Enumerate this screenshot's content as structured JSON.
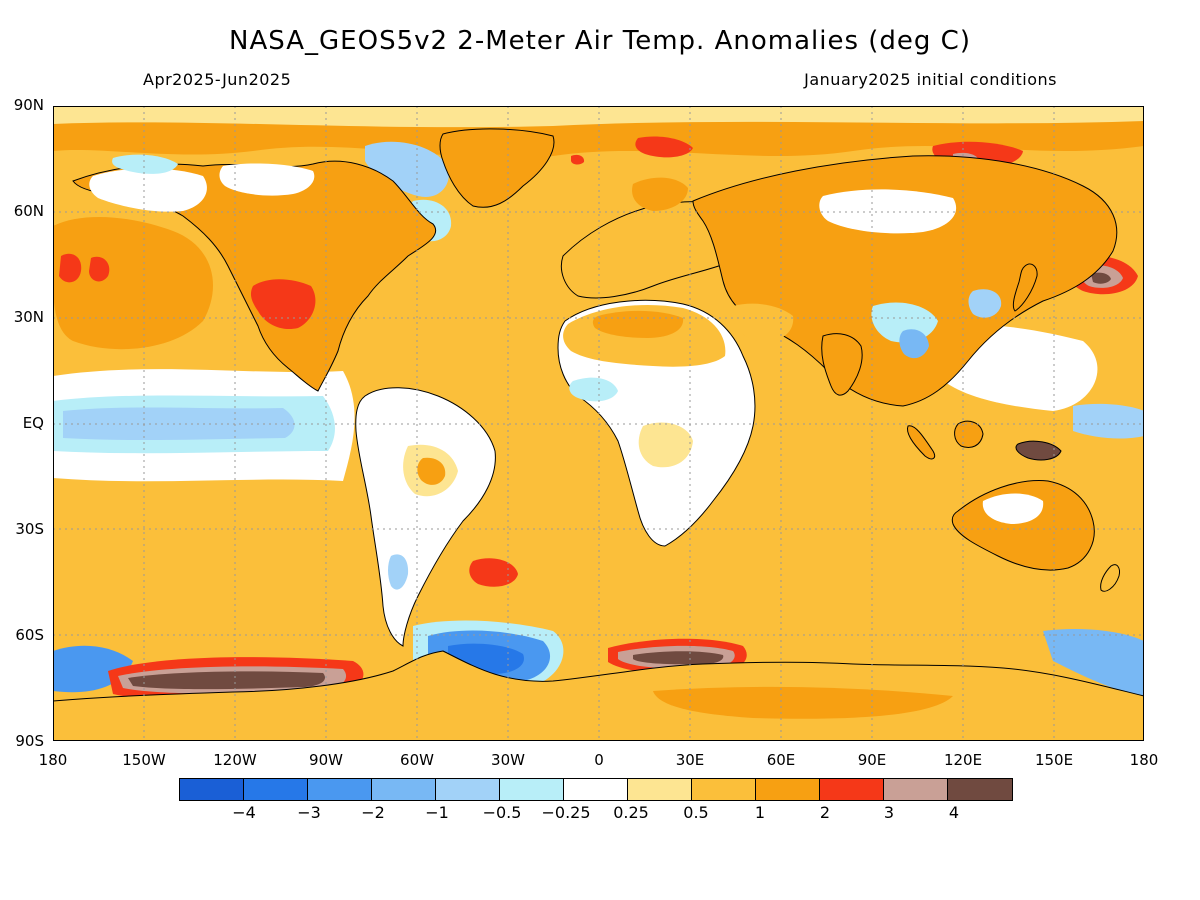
{
  "header": {
    "title": "NASA_GEOS5v2 2-Meter Air Temp. Anomalies (deg C)",
    "period": "Apr2025-Jun2025",
    "conditions": "January2025 initial conditions"
  },
  "axes": {
    "lat_labels": [
      "90N",
      "60N",
      "30N",
      "EQ",
      "30S",
      "60S",
      "90S"
    ],
    "lon_labels": [
      "180",
      "150W",
      "120W",
      "90W",
      "60W",
      "30W",
      "0",
      "30E",
      "60E",
      "90E",
      "120E",
      "150E",
      "180"
    ]
  },
  "colorbar": {
    "labels": [
      "-4",
      "-3",
      "-2",
      "-1",
      "-0.5",
      "-0.25",
      "0.25",
      "0.5",
      "1",
      "2",
      "3",
      "4"
    ],
    "colors": [
      "#1a5fd6",
      "#2678e8",
      "#4a98f0",
      "#78b8f4",
      "#a2d2f8",
      "#b8eef8",
      "#ffffff",
      "#fde592",
      "#fbbf3a",
      "#f7a012",
      "#f53818",
      "#c9a096",
      "#704a40"
    ]
  },
  "map_colors": {
    "ocean_base": "#fbbf3a",
    "neutral": "#ffffff",
    "weak_warm": "#fde592",
    "warm": "#f7a012",
    "hot": "#f53818",
    "very_hot": "#c9a096",
    "extreme": "#704a40",
    "weak_cool": "#b8eef8",
    "cool": "#a2d2f8",
    "cold": "#4a98f0",
    "very_cold": "#2678e8",
    "coast": "#000000",
    "grid": "#999999"
  }
}
